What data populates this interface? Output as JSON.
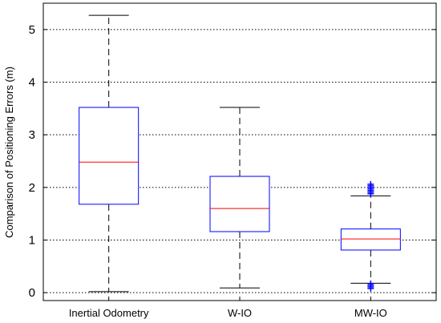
{
  "chart_data": {
    "type": "boxplot",
    "ylabel": "Comparison of Positioning Errors (m)",
    "xlabel": "",
    "title": "",
    "ylim": [
      -0.15,
      5.5
    ],
    "yticks": [
      0,
      1,
      2,
      3,
      4,
      5
    ],
    "grid": "horizontal-dotted",
    "categories": [
      "Inertial Odometry",
      "W-IO",
      "MW-IO"
    ],
    "boxes": [
      {
        "whisker_low": 0.02,
        "q1": 1.68,
        "median": 2.48,
        "q3": 3.52,
        "whisker_high": 5.27,
        "outliers": []
      },
      {
        "whisker_low": 0.09,
        "q1": 1.16,
        "median": 1.6,
        "q3": 2.21,
        "whisker_high": 3.52,
        "outliers": []
      },
      {
        "whisker_low": 0.18,
        "q1": 0.81,
        "median": 1.02,
        "q3": 1.21,
        "whisker_high": 1.84,
        "outliers": [
          0.08,
          0.11,
          0.14,
          0.17,
          1.88,
          1.91,
          1.94,
          1.97,
          2.0,
          2.03,
          2.06
        ]
      }
    ],
    "colors": {
      "box": "#0000ff",
      "median": "#ff0000",
      "whisker": "#000000",
      "outlier": "#0000ff",
      "grid": "#000000"
    }
  }
}
